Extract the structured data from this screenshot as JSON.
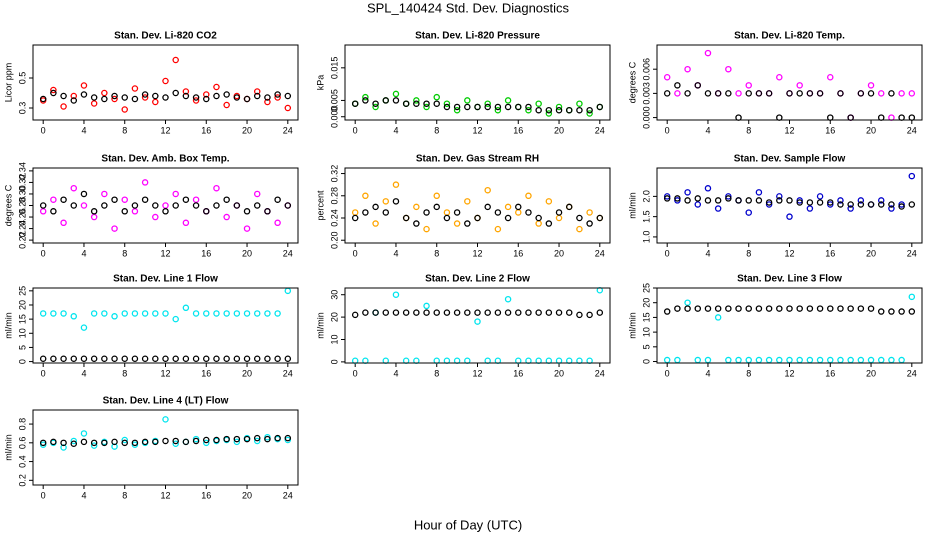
{
  "title": "SPL_140424  Std. Dev. Diagnostics",
  "x_label": "Hour of Day (UTC)",
  "chart_data": [
    {
      "type": "scatter",
      "title": "Stan. Dev. Li-820 CO2",
      "y_label": "Licor ppm",
      "x": [
        0,
        1,
        2,
        3,
        4,
        5,
        6,
        7,
        8,
        9,
        10,
        11,
        12,
        13,
        14,
        15,
        16,
        17,
        18,
        19,
        20,
        21,
        22,
        23,
        24
      ],
      "xlim": [
        -1,
        25
      ],
      "xticks": [
        0,
        4,
        8,
        12,
        16,
        20,
        24
      ],
      "ylim": [
        0.22,
        0.72
      ],
      "yticks": [
        0.3,
        0.5
      ],
      "series": [
        {
          "color": "#ff0000",
          "values": [
            0.35,
            0.42,
            0.31,
            0.38,
            0.45,
            0.33,
            0.4,
            0.36,
            0.29,
            0.43,
            0.37,
            0.34,
            0.48,
            0.62,
            0.41,
            0.35,
            0.39,
            0.44,
            0.32,
            0.38,
            0.36,
            0.41,
            0.34,
            0.37,
            0.3
          ]
        },
        {
          "color": "#000000",
          "values": [
            0.36,
            0.4,
            0.38,
            0.35,
            0.39,
            0.37,
            0.36,
            0.38,
            0.37,
            0.36,
            0.39,
            0.38,
            0.37,
            0.4,
            0.38,
            0.37,
            0.36,
            0.38,
            0.39,
            0.37,
            0.36,
            0.38,
            0.37,
            0.39,
            0.38
          ]
        }
      ]
    },
    {
      "type": "scatter",
      "title": "Stan. Dev. Li-820 Pressure",
      "y_label": "kPa",
      "x": [
        0,
        1,
        2,
        3,
        4,
        5,
        6,
        7,
        8,
        9,
        10,
        11,
        12,
        13,
        14,
        15,
        16,
        17,
        18,
        19,
        20,
        21,
        22,
        23,
        24
      ],
      "xlim": [
        -1,
        25
      ],
      "xticks": [
        0,
        4,
        8,
        12,
        16,
        20,
        24
      ],
      "ylim": [
        -0.001,
        0.022
      ],
      "yticks": [
        {
          "value": 0,
          "label": "0.000"
        },
        {
          "value": 0.005,
          "label": "0.005"
        },
        {
          "value": 0.015,
          "label": "0.015"
        }
      ],
      "series": [
        {
          "color": "#00cc00",
          "values": [
            0.004,
            0.006,
            0.003,
            0.005,
            0.007,
            0.004,
            0.005,
            0.003,
            0.006,
            0.004,
            0.002,
            0.005,
            0.003,
            0.004,
            0.002,
            0.005,
            0.003,
            0.002,
            0.004,
            0.001,
            0.003,
            0.002,
            0.004,
            0.001,
            0.003
          ]
        },
        {
          "color": "#000000",
          "values": [
            0.004,
            0.005,
            0.004,
            0.005,
            0.005,
            0.004,
            0.004,
            0.004,
            0.004,
            0.003,
            0.003,
            0.003,
            0.003,
            0.003,
            0.003,
            0.003,
            0.003,
            0.003,
            0.002,
            0.002,
            0.002,
            0.002,
            0.002,
            0.002,
            0.003
          ]
        }
      ]
    },
    {
      "type": "scatter",
      "title": "Stan. Dev. Li-820 Temp.",
      "y_label": "degrees C",
      "x": [
        0,
        1,
        2,
        3,
        4,
        5,
        6,
        7,
        8,
        9,
        10,
        11,
        12,
        13,
        14,
        15,
        16,
        17,
        18,
        19,
        20,
        21,
        22,
        23,
        24
      ],
      "xlim": [
        -1,
        25
      ],
      "xticks": [
        0,
        4,
        8,
        12,
        16,
        20,
        24
      ],
      "ylim": [
        -0.0003,
        0.009
      ],
      "yticks": [
        {
          "value": 0,
          "label": "0.000"
        },
        {
          "value": 0.003,
          "label": "0.003"
        },
        {
          "value": 0.006,
          "label": "0.006"
        }
      ],
      "series": [
        {
          "color": "#ff00ff",
          "values": [
            0.005,
            0.003,
            0.006,
            0.004,
            0.008,
            0.003,
            0.006,
            0.003,
            0.004,
            0.003,
            0.003,
            0.005,
            0.003,
            0.004,
            0.003,
            0.003,
            0.005,
            0.003,
            0,
            0.003,
            0.004,
            0.003,
            0,
            0.003,
            0.003
          ]
        },
        {
          "color": "#000000",
          "values": [
            0.003,
            0.004,
            0.003,
            0.004,
            0.003,
            0.003,
            0.003,
            0,
            0.003,
            0.003,
            0.003,
            0,
            0.003,
            0.003,
            0.003,
            0.003,
            0,
            0.003,
            0,
            0.003,
            0.003,
            0,
            0.003,
            0,
            0
          ]
        }
      ]
    },
    {
      "type": "scatter",
      "title": "Stan. Dev. Amb. Box Temp.",
      "y_label": "degrees C",
      "x": [
        0,
        1,
        2,
        3,
        4,
        5,
        6,
        7,
        8,
        9,
        10,
        11,
        12,
        13,
        14,
        15,
        16,
        17,
        18,
        19,
        20,
        21,
        22,
        23,
        24
      ],
      "xlim": [
        -1,
        25
      ],
      "xticks": [
        0,
        4,
        8,
        12,
        16,
        20,
        24
      ],
      "ylim": [
        0.215,
        0.345
      ],
      "yticks": [
        {
          "value": 0.22,
          "label": "0.22"
        },
        {
          "value": 0.24,
          "label": "0.24"
        },
        {
          "value": 0.26,
          "label": "0.26"
        },
        {
          "value": 0.28,
          "label": "0.28"
        },
        {
          "value": 0.3,
          "label": "0.30"
        },
        {
          "value": 0.32,
          "label": "0.32"
        },
        {
          "value": 0.34,
          "label": "0.34"
        }
      ],
      "series": [
        {
          "color": "#ff00ff",
          "values": [
            0.27,
            0.29,
            0.25,
            0.31,
            0.28,
            0.26,
            0.3,
            0.24,
            0.29,
            0.27,
            0.32,
            0.26,
            0.28,
            0.3,
            0.25,
            0.29,
            0.27,
            0.31,
            0.26,
            0.28,
            0.24,
            0.3,
            0.27,
            0.25,
            0.28
          ]
        },
        {
          "color": "#000000",
          "values": [
            0.28,
            0.27,
            0.29,
            0.28,
            0.3,
            0.27,
            0.28,
            0.29,
            0.27,
            0.28,
            0.29,
            0.28,
            0.27,
            0.28,
            0.29,
            0.28,
            0.27,
            0.28,
            0.29,
            0.28,
            0.27,
            0.28,
            0.27,
            0.29,
            0.28
          ]
        }
      ]
    },
    {
      "type": "scatter",
      "title": "Stan. Dev. Gas Stream RH",
      "y_label": "percent",
      "x": [
        0,
        1,
        2,
        3,
        4,
        5,
        6,
        7,
        8,
        9,
        10,
        11,
        12,
        13,
        14,
        15,
        16,
        17,
        18,
        19,
        20,
        21,
        22,
        23,
        24
      ],
      "xlim": [
        -1,
        25
      ],
      "xticks": [
        0,
        4,
        8,
        12,
        16,
        20,
        24
      ],
      "ylim": [
        0.195,
        0.33
      ],
      "yticks": [
        {
          "value": 0.2,
          "label": "0.20"
        },
        {
          "value": 0.24,
          "label": "0.24"
        },
        {
          "value": 0.28,
          "label": "0.28"
        },
        {
          "value": 0.32,
          "label": "0.32"
        }
      ],
      "series": [
        {
          "color": "#ffa500",
          "values": [
            0.25,
            0.28,
            0.23,
            0.27,
            0.3,
            0.24,
            0.26,
            0.22,
            0.28,
            0.25,
            0.23,
            0.27,
            0.24,
            0.29,
            0.22,
            0.26,
            0.25,
            0.28,
            0.23,
            0.27,
            0.24,
            0.26,
            0.22,
            0.25,
            0.24
          ]
        },
        {
          "color": "#000000",
          "values": [
            0.24,
            0.25,
            0.26,
            0.25,
            0.27,
            0.24,
            0.23,
            0.25,
            0.26,
            0.24,
            0.25,
            0.23,
            0.24,
            0.26,
            0.25,
            0.24,
            0.26,
            0.25,
            0.24,
            0.23,
            0.25,
            0.26,
            0.24,
            0.23,
            0.24
          ]
        }
      ]
    },
    {
      "type": "scatter",
      "title": "Stan. Dev. Sample Flow",
      "y_label": "ml/min",
      "x": [
        0,
        1,
        2,
        3,
        4,
        5,
        6,
        7,
        8,
        9,
        10,
        11,
        12,
        13,
        14,
        15,
        16,
        17,
        18,
        19,
        20,
        21,
        22,
        23,
        24
      ],
      "xlim": [
        -1,
        25
      ],
      "xticks": [
        0,
        4,
        8,
        12,
        16,
        20,
        24
      ],
      "ylim": [
        0.85,
        2.7
      ],
      "yticks": [
        {
          "value": 1,
          "label": "1.0"
        },
        {
          "value": 1.5,
          "label": "1.5"
        },
        {
          "value": 2,
          "label": "2.0"
        }
      ],
      "series": [
        {
          "color": "#0000cc",
          "values": [
            2.0,
            1.9,
            2.1,
            1.8,
            2.2,
            1.7,
            2.0,
            1.9,
            1.6,
            2.1,
            1.8,
            2.0,
            1.5,
            1.9,
            1.7,
            2.0,
            1.8,
            1.9,
            1.7,
            1.9,
            1.8,
            1.9,
            1.7,
            1.8,
            2.5
          ]
        },
        {
          "color": "#000000",
          "values": [
            1.95,
            1.95,
            1.9,
            1.95,
            1.9,
            1.9,
            1.95,
            1.9,
            1.9,
            1.9,
            1.85,
            1.9,
            1.9,
            1.85,
            1.85,
            1.85,
            1.85,
            1.8,
            1.8,
            1.8,
            1.8,
            1.8,
            1.8,
            1.75,
            1.8
          ]
        }
      ]
    },
    {
      "type": "scatter",
      "title": "Stan. Dev. Line 1 Flow",
      "y_label": "ml/min",
      "x": [
        0,
        1,
        2,
        3,
        4,
        5,
        6,
        7,
        8,
        9,
        10,
        11,
        12,
        13,
        14,
        15,
        16,
        17,
        18,
        19,
        20,
        21,
        22,
        23,
        24
      ],
      "xlim": [
        -1,
        25
      ],
      "xticks": [
        0,
        4,
        8,
        12,
        16,
        20,
        24
      ],
      "ylim": [
        -0.5,
        26
      ],
      "yticks": [
        0,
        5,
        10,
        15,
        20,
        25
      ],
      "series": [
        {
          "color": "#00e5ee",
          "values": [
            17,
            17,
            17,
            16,
            12,
            17,
            17,
            16,
            17,
            17,
            17,
            17,
            17,
            15,
            19,
            17,
            17,
            17,
            17,
            17,
            17,
            17,
            17,
            17,
            25
          ]
        },
        {
          "color": "#000000",
          "values": [
            1,
            1,
            1,
            1,
            1,
            1,
            1,
            1,
            1,
            1,
            1,
            1,
            1,
            1,
            1,
            1,
            1,
            1,
            1,
            1,
            1,
            1,
            1,
            1,
            1
          ]
        }
      ]
    },
    {
      "type": "scatter",
      "title": "Stan. Dev. Line 2 Flow",
      "y_label": "ml/min",
      "x": [
        0,
        1,
        2,
        3,
        4,
        5,
        6,
        7,
        8,
        9,
        10,
        11,
        12,
        13,
        14,
        15,
        16,
        17,
        18,
        19,
        20,
        21,
        22,
        23,
        24
      ],
      "xlim": [
        -1,
        25
      ],
      "xticks": [
        0,
        4,
        8,
        12,
        16,
        20,
        24
      ],
      "ylim": [
        -0.5,
        33
      ],
      "yticks": [
        0,
        10,
        20,
        30
      ],
      "series": [
        {
          "color": "#00e5ee",
          "values": [
            0.5,
            0.5,
            22,
            0.5,
            30,
            0.5,
            0.5,
            25,
            0.5,
            0.5,
            0.5,
            0.5,
            18,
            0.5,
            0.5,
            28,
            0.5,
            0.5,
            0.5,
            0.5,
            0.5,
            0.5,
            0.5,
            0.5,
            32
          ]
        },
        {
          "color": "#000000",
          "values": [
            21,
            22,
            22,
            22,
            22,
            22,
            22,
            22,
            22,
            22,
            22,
            22,
            22,
            22,
            22,
            22,
            22,
            22,
            22,
            22,
            22,
            22,
            21,
            21,
            22
          ]
        }
      ]
    },
    {
      "type": "scatter",
      "title": "Stan. Dev. Line 3 Flow",
      "y_label": "ml/min",
      "x": [
        0,
        1,
        2,
        3,
        4,
        5,
        6,
        7,
        8,
        9,
        10,
        11,
        12,
        13,
        14,
        15,
        16,
        17,
        18,
        19,
        20,
        21,
        22,
        23,
        24
      ],
      "xlim": [
        -1,
        25
      ],
      "xticks": [
        0,
        4,
        8,
        12,
        16,
        20,
        24
      ],
      "ylim": [
        -0.5,
        25
      ],
      "yticks": [
        0,
        5,
        10,
        15,
        20,
        25
      ],
      "series": [
        {
          "color": "#00e5ee",
          "values": [
            0.5,
            0.5,
            20,
            0.5,
            0.5,
            15,
            0.5,
            0.5,
            0.5,
            0.5,
            0.5,
            0.5,
            0.5,
            0.5,
            0.5,
            0.5,
            0.5,
            0.5,
            0.5,
            0.5,
            0.5,
            0.5,
            0.5,
            0.5,
            22
          ]
        },
        {
          "color": "#000000",
          "values": [
            17,
            18,
            18,
            18,
            18,
            18,
            18,
            18,
            18,
            18,
            18,
            18,
            18,
            18,
            18,
            18,
            18,
            18,
            18,
            18,
            18,
            17,
            17,
            17,
            17
          ]
        }
      ]
    },
    {
      "type": "scatter",
      "title": "Stan. Dev. Line 4 (LT) Flow",
      "y_label": "ml/min",
      "x": [
        0,
        1,
        2,
        3,
        4,
        5,
        6,
        7,
        8,
        9,
        10,
        11,
        12,
        13,
        14,
        15,
        16,
        17,
        18,
        19,
        20,
        21,
        22,
        23,
        24
      ],
      "xlim": [
        -1,
        25
      ],
      "xticks": [
        0,
        4,
        8,
        12,
        16,
        20,
        24
      ],
      "ylim": [
        0.15,
        0.95
      ],
      "yticks": [
        0.2,
        0.4,
        0.6,
        0.8
      ],
      "series": [
        {
          "color": "#00e5ee",
          "values": [
            0.58,
            0.6,
            0.55,
            0.62,
            0.7,
            0.57,
            0.61,
            0.56,
            0.63,
            0.58,
            0.6,
            0.62,
            0.85,
            0.59,
            0.61,
            0.64,
            0.6,
            0.62,
            0.63,
            0.61,
            0.65,
            0.62,
            0.66,
            0.64,
            0.63
          ]
        },
        {
          "color": "#000000",
          "values": [
            0.6,
            0.61,
            0.6,
            0.59,
            0.61,
            0.6,
            0.6,
            0.61,
            0.6,
            0.6,
            0.61,
            0.61,
            0.62,
            0.62,
            0.61,
            0.62,
            0.63,
            0.63,
            0.64,
            0.64,
            0.64,
            0.65,
            0.64,
            0.65,
            0.65
          ]
        }
      ]
    }
  ]
}
